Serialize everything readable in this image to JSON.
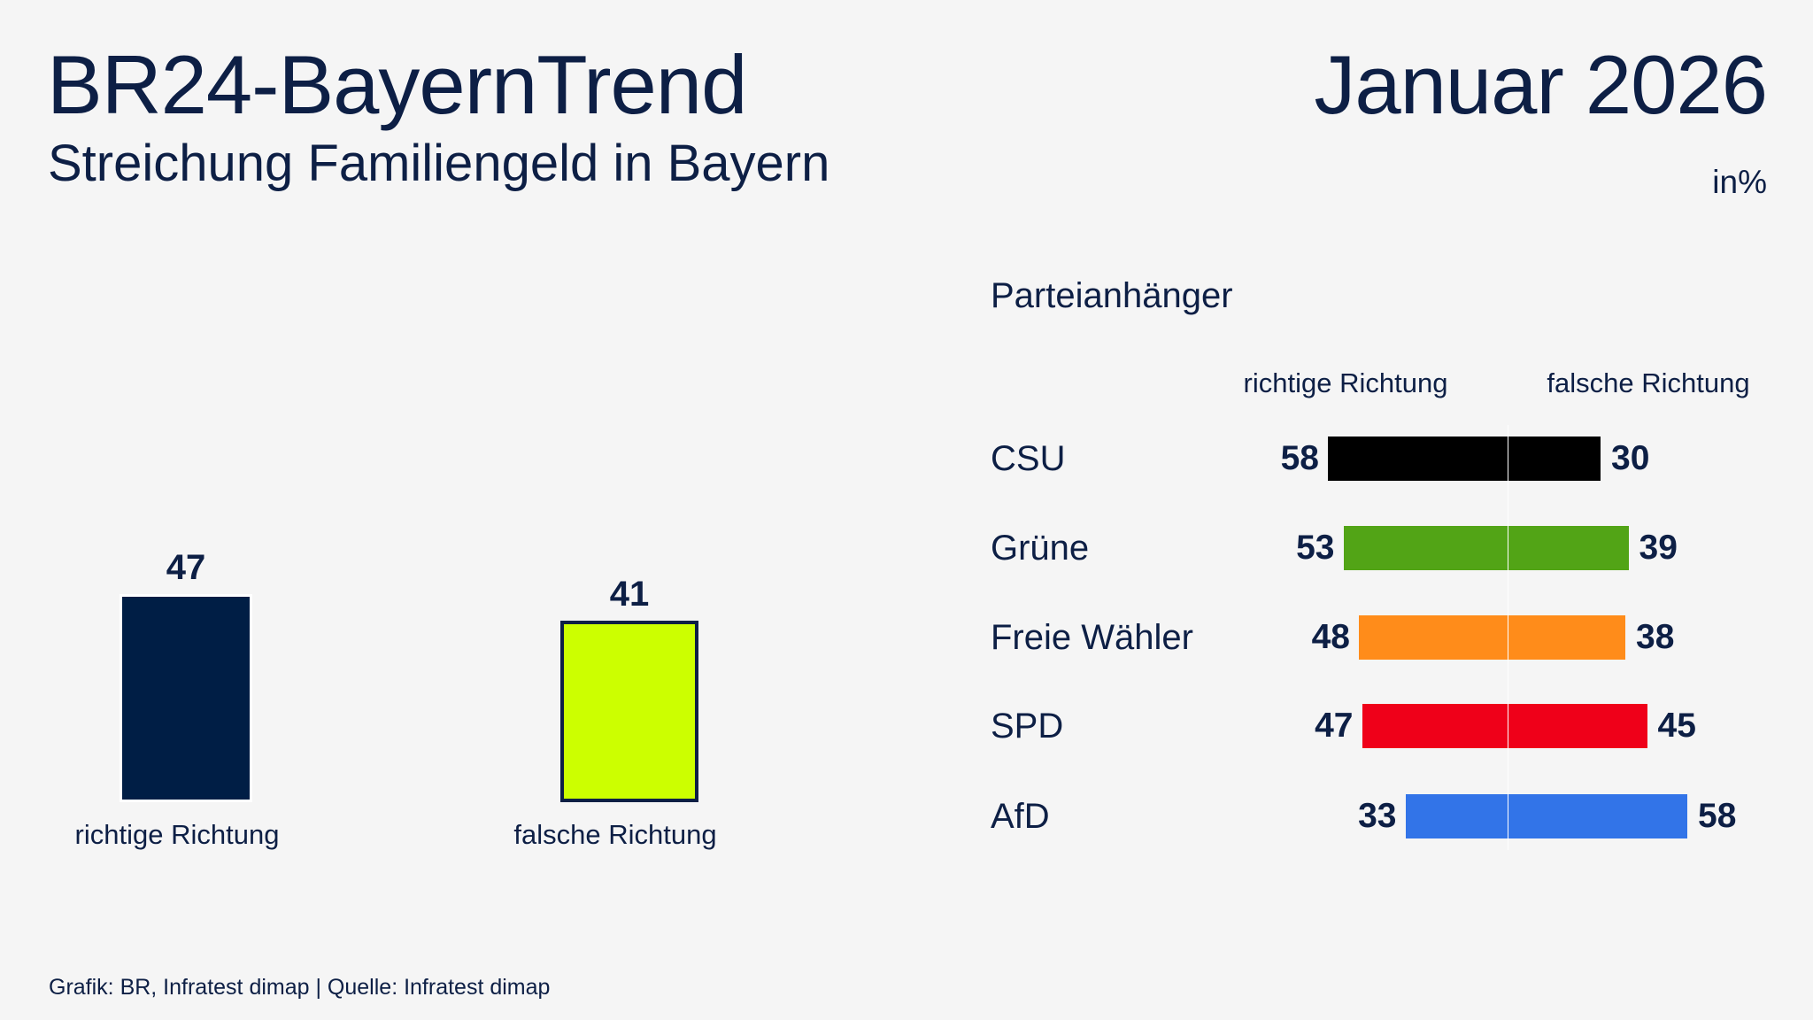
{
  "header": {
    "title": "BR24-BayernTrend",
    "subtitle": "Streichung Familiengeld in Bayern",
    "date": "Januar 2026",
    "unit": "in%"
  },
  "chart_data": [
    {
      "type": "bar",
      "categories": [
        "richtige Richtung",
        "falsche Richtung"
      ],
      "values": [
        47,
        41
      ],
      "colors": [
        "#001e45",
        "#ccff00"
      ],
      "ylim": [
        0,
        100
      ]
    },
    {
      "type": "bar",
      "orientation": "horizontal-diverging",
      "title": "Parteianhänger",
      "categories": [
        "CSU",
        "Grüne",
        "Freie Wähler",
        "SPD",
        "AfD"
      ],
      "series": [
        {
          "name": "richtige Richtung",
          "values": [
            58,
            53,
            48,
            47,
            33
          ]
        },
        {
          "name": "falsche Richtung",
          "values": [
            30,
            39,
            38,
            45,
            58
          ]
        }
      ],
      "colors": [
        "#000000",
        "#52a416",
        "#ff8c1a",
        "#ef0019",
        "#3274e8"
      ]
    }
  ],
  "footer": "Grafik: BR, Infratest dimap | Quelle: Infratest dimap"
}
